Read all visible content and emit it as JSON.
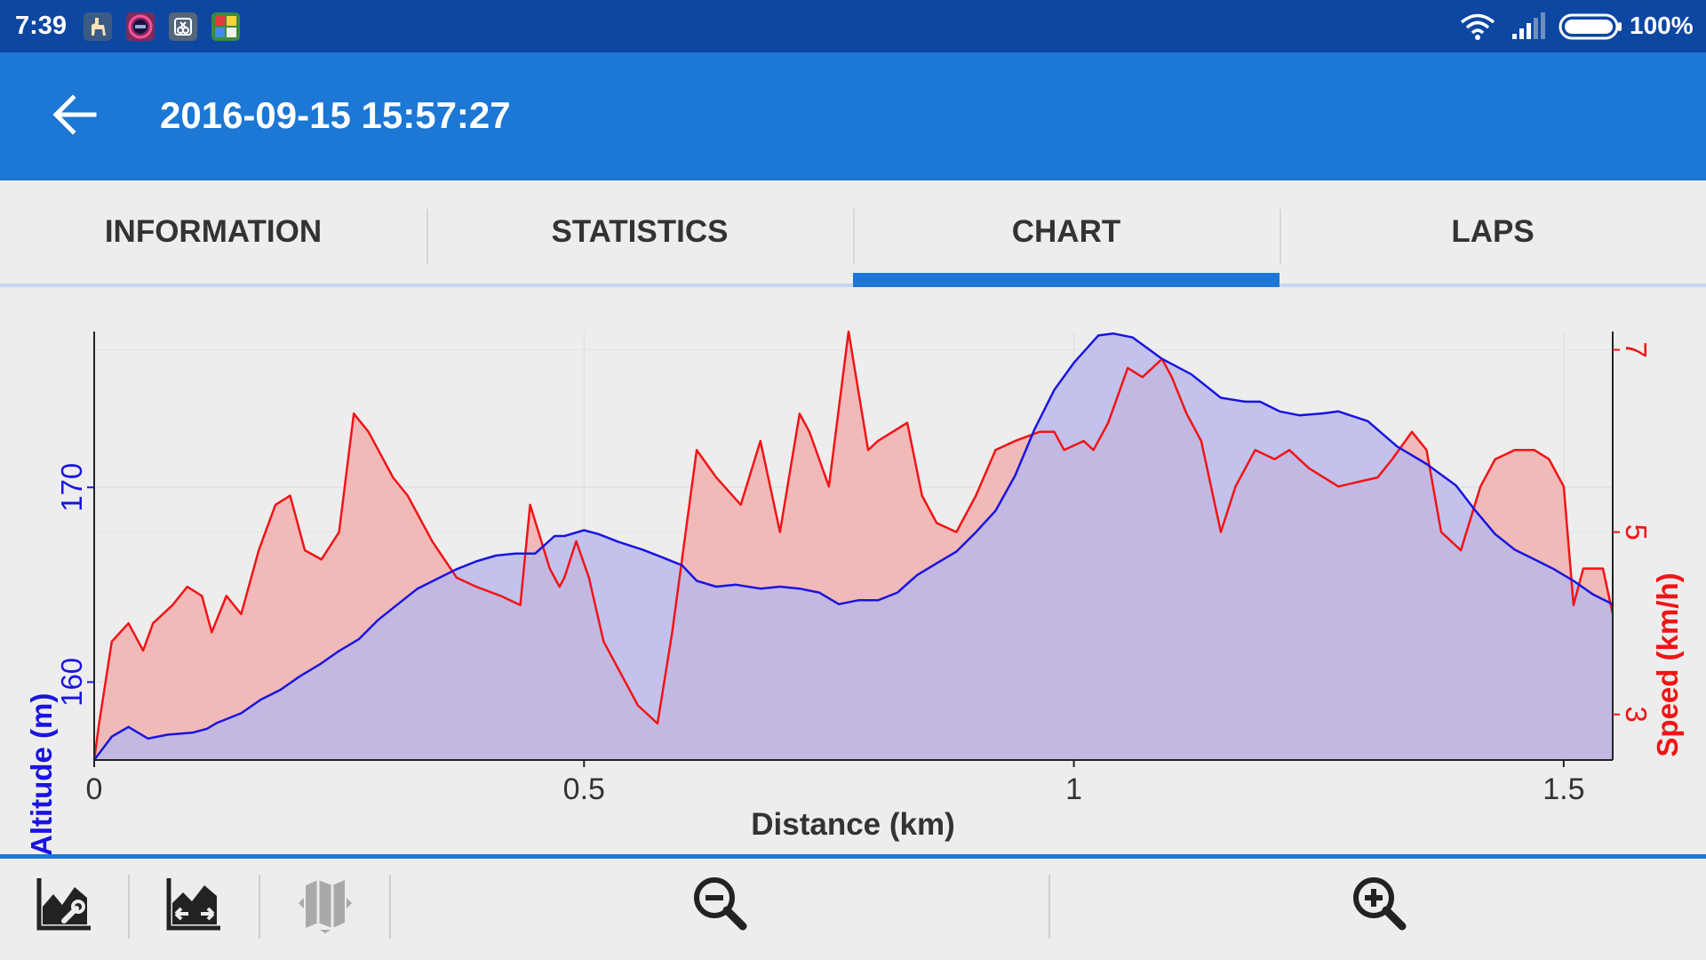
{
  "status_bar": {
    "time": "7:39",
    "battery_percent": "100%",
    "app_icons": [
      "llama-app-icon",
      "clock-widget-icon",
      "multiwindow-app-icon",
      "puzzle-game-icon"
    ],
    "wifi_icon": "wifi-icon",
    "signal_icon": "cell-signal-icon",
    "battery_icon": "battery-full-icon",
    "bar_color": "#0e47a1"
  },
  "app_bar": {
    "title": "2016-09-15 15:57:27",
    "back_icon": "arrow-back-icon",
    "color": "#1c77d5"
  },
  "tabs": [
    {
      "label": "INFORMATION",
      "selected": false
    },
    {
      "label": "STATISTICS",
      "selected": false
    },
    {
      "label": "CHART",
      "selected": true
    },
    {
      "label": "LAPS",
      "selected": false
    }
  ],
  "chart_data": {
    "type": "area",
    "xlabel": "Distance (km)",
    "ylabel_left": "Altitude (m)",
    "ylabel_right": "Speed (km/h)",
    "x_ticks": [
      "0",
      "0.5",
      "1",
      "1.5"
    ],
    "y_left_ticks": [
      "160",
      "170"
    ],
    "y_right_ticks": [
      "3",
      "5",
      "7"
    ],
    "xlim": [
      0,
      1.55
    ],
    "ylim_left": [
      156,
      178
    ],
    "ylim_right": [
      2.5,
      7.2
    ],
    "grid": true,
    "series": [
      {
        "name": "Altitude (m)",
        "axis": "left",
        "color": "#1a14e0",
        "fill": "#b8b8ec",
        "x": [
          0,
          0.018,
          0.035,
          0.055,
          0.075,
          0.1,
          0.115,
          0.125,
          0.15,
          0.17,
          0.19,
          0.21,
          0.23,
          0.25,
          0.27,
          0.29,
          0.31,
          0.33,
          0.35,
          0.37,
          0.39,
          0.41,
          0.43,
          0.45,
          0.47,
          0.48,
          0.5,
          0.515,
          0.535,
          0.56,
          0.58,
          0.6,
          0.615,
          0.635,
          0.655,
          0.68,
          0.7,
          0.72,
          0.74,
          0.76,
          0.78,
          0.8,
          0.82,
          0.84,
          0.86,
          0.88,
          0.9,
          0.92,
          0.94,
          0.96,
          0.98,
          1.0,
          1.025,
          1.04,
          1.06,
          1.09,
          1.12,
          1.15,
          1.175,
          1.19,
          1.21,
          1.23,
          1.255,
          1.27,
          1.3,
          1.33,
          1.36,
          1.39,
          1.41,
          1.43,
          1.45,
          1.47,
          1.49,
          1.51,
          1.53,
          1.55
        ],
        "values": [
          156,
          157.2,
          157.7,
          157.1,
          157.3,
          157.4,
          157.6,
          157.9,
          158.4,
          159.1,
          159.6,
          160.3,
          160.9,
          161.6,
          162.2,
          163.2,
          164.0,
          164.8,
          165.3,
          165.8,
          166.2,
          166.5,
          166.6,
          166.6,
          167.5,
          167.5,
          167.8,
          167.6,
          167.2,
          166.8,
          166.4,
          166.0,
          165.2,
          164.9,
          165.0,
          164.8,
          164.9,
          164.8,
          164.6,
          164.0,
          164.2,
          164.2,
          164.6,
          165.5,
          166.1,
          166.7,
          167.7,
          168.8,
          170.6,
          173.0,
          175.0,
          176.4,
          177.8,
          177.9,
          177.7,
          176.6,
          175.8,
          174.6,
          174.4,
          174.4,
          173.9,
          173.7,
          173.8,
          173.9,
          173.4,
          172.1,
          171.2,
          170.1,
          168.8,
          167.6,
          166.8,
          166.3,
          165.8,
          165.2,
          164.5,
          164.0
        ]
      },
      {
        "name": "Speed (km/h)",
        "axis": "right",
        "color": "#f11416",
        "fill": "#f2b6b6",
        "x": [
          0,
          0.005,
          0.018,
          0.035,
          0.05,
          0.06,
          0.08,
          0.095,
          0.11,
          0.12,
          0.135,
          0.15,
          0.168,
          0.185,
          0.2,
          0.215,
          0.232,
          0.25,
          0.265,
          0.28,
          0.305,
          0.32,
          0.345,
          0.37,
          0.39,
          0.415,
          0.435,
          0.445,
          0.465,
          0.475,
          0.48,
          0.492,
          0.505,
          0.52,
          0.545,
          0.555,
          0.575,
          0.59,
          0.615,
          0.635,
          0.66,
          0.68,
          0.7,
          0.72,
          0.73,
          0.75,
          0.77,
          0.79,
          0.8,
          0.83,
          0.845,
          0.86,
          0.88,
          0.9,
          0.92,
          0.94,
          0.965,
          0.98,
          0.99,
          1.01,
          1.02,
          1.035,
          1.055,
          1.07,
          1.09,
          1.1,
          1.115,
          1.13,
          1.15,
          1.165,
          1.185,
          1.205,
          1.22,
          1.24,
          1.27,
          1.31,
          1.325,
          1.345,
          1.36,
          1.375,
          1.395,
          1.415,
          1.43,
          1.45,
          1.47,
          1.485,
          1.5,
          1.51,
          1.52,
          1.54,
          1.55
        ],
        "values": [
          2.5,
          2.9,
          3.8,
          4.0,
          3.7,
          4.0,
          4.2,
          4.4,
          4.3,
          3.9,
          4.3,
          4.1,
          4.8,
          5.3,
          5.4,
          4.8,
          4.7,
          5.0,
          6.3,
          6.1,
          5.6,
          5.4,
          4.9,
          4.5,
          4.4,
          4.3,
          4.2,
          5.3,
          4.6,
          4.4,
          4.5,
          4.9,
          4.5,
          3.8,
          3.3,
          3.1,
          2.9,
          3.9,
          5.9,
          5.6,
          5.3,
          6.0,
          5.0,
          6.3,
          6.1,
          5.5,
          7.2,
          5.9,
          6.0,
          6.2,
          5.4,
          5.1,
          5.0,
          5.4,
          5.9,
          6.0,
          6.1,
          6.1,
          5.9,
          6.0,
          5.9,
          6.2,
          6.8,
          6.7,
          6.9,
          6.7,
          6.3,
          6.0,
          5.0,
          5.5,
          5.9,
          5.8,
          5.9,
          5.7,
          5.5,
          5.6,
          5.8,
          6.1,
          5.9,
          5.0,
          4.8,
          5.5,
          5.8,
          5.9,
          5.9,
          5.8,
          5.5,
          4.2,
          4.6,
          4.6,
          4.1
        ]
      }
    ]
  },
  "toolbar": {
    "buttons": [
      {
        "name": "chart-settings-icon",
        "enabled": true
      },
      {
        "name": "chart-fit-icon",
        "enabled": true
      },
      {
        "name": "map-icon",
        "enabled": false
      },
      {
        "name": "zoom-out-icon",
        "enabled": true
      },
      {
        "name": "zoom-in-icon",
        "enabled": true
      }
    ],
    "accent": "#1c77d5"
  }
}
